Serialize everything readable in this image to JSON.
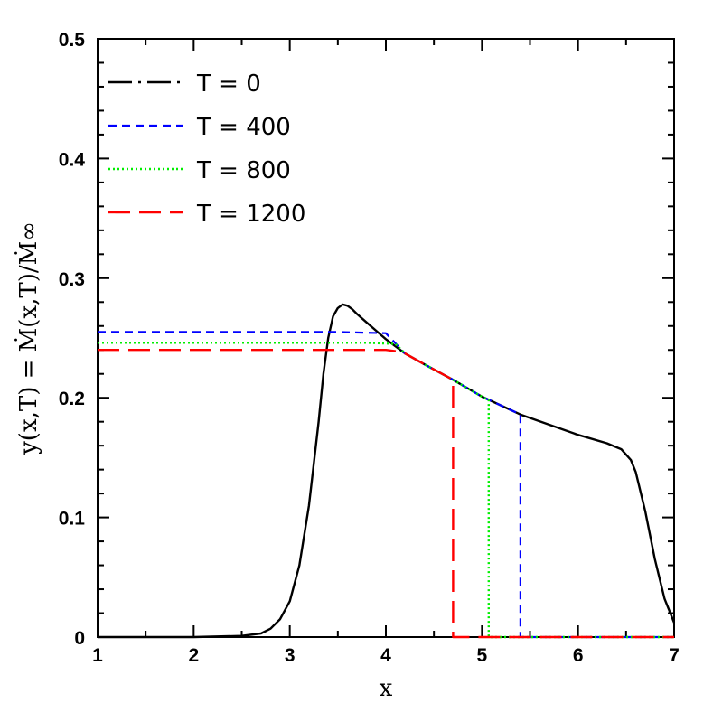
{
  "chart_data": {
    "type": "line",
    "title": "",
    "xlabel": "x",
    "ylabel": "y(x,T) = Ṁ(x,T)/Ṁ∞",
    "xlim": [
      1,
      7
    ],
    "ylim": [
      0,
      0.5
    ],
    "xticks": [
      1,
      2,
      3,
      4,
      5,
      6,
      7
    ],
    "xtick_labels": [
      "1",
      "2",
      "3",
      "4",
      "5",
      "6",
      "7"
    ],
    "yticks": [
      0,
      0.1,
      0.2,
      0.3,
      0.4,
      0.5
    ],
    "ytick_labels": [
      "0",
      "0.1",
      "0.2",
      "0.3",
      "0.4",
      "0.5"
    ],
    "grid": false,
    "legend_position": "top-left",
    "series": [
      {
        "name": "T = 0",
        "color": "#000000",
        "dash": "long-dash-dot",
        "x": [
          1.0,
          2.0,
          2.5,
          2.7,
          2.8,
          2.9,
          3.0,
          3.1,
          3.2,
          3.3,
          3.35,
          3.4,
          3.45,
          3.5,
          3.55,
          3.6,
          3.65,
          3.7,
          3.8,
          3.9,
          4.0,
          4.2,
          4.4,
          4.7,
          5.0,
          5.4,
          6.0,
          6.3,
          6.45,
          6.55,
          6.6,
          6.7,
          6.8,
          6.9,
          7.0
        ],
        "y": [
          0.0,
          0.0,
          0.001,
          0.003,
          0.007,
          0.015,
          0.03,
          0.06,
          0.11,
          0.18,
          0.22,
          0.25,
          0.268,
          0.275,
          0.278,
          0.277,
          0.274,
          0.27,
          0.263,
          0.256,
          0.249,
          0.237,
          0.228,
          0.215,
          0.201,
          0.186,
          0.169,
          0.162,
          0.157,
          0.148,
          0.138,
          0.105,
          0.065,
          0.032,
          0.012
        ]
      },
      {
        "name": "T = 400",
        "color": "#0000ff",
        "dash": "short-dash",
        "x": [
          1.0,
          3.5,
          4.0,
          4.2,
          4.4,
          4.7,
          5.0,
          5.4,
          5.4,
          7.0
        ],
        "y": [
          0.255,
          0.255,
          0.254,
          0.237,
          0.228,
          0.215,
          0.201,
          0.186,
          0.0,
          0.0
        ]
      },
      {
        "name": "T = 800",
        "color": "#00ee00",
        "dash": "dotted",
        "x": [
          1.0,
          3.8,
          4.1,
          4.2,
          4.4,
          4.7,
          5.0,
          5.07,
          5.07,
          7.0
        ],
        "y": [
          0.246,
          0.246,
          0.245,
          0.237,
          0.228,
          0.215,
          0.201,
          0.198,
          0.0,
          0.0
        ]
      },
      {
        "name": "T = 1200",
        "color": "#ff0000",
        "dash": "long-dash",
        "x": [
          1.0,
          4.0,
          4.1,
          4.2,
          4.4,
          4.7,
          4.7,
          7.0
        ],
        "y": [
          0.24,
          0.24,
          0.239,
          0.237,
          0.228,
          0.215,
          0.0,
          0.0
        ]
      }
    ]
  }
}
